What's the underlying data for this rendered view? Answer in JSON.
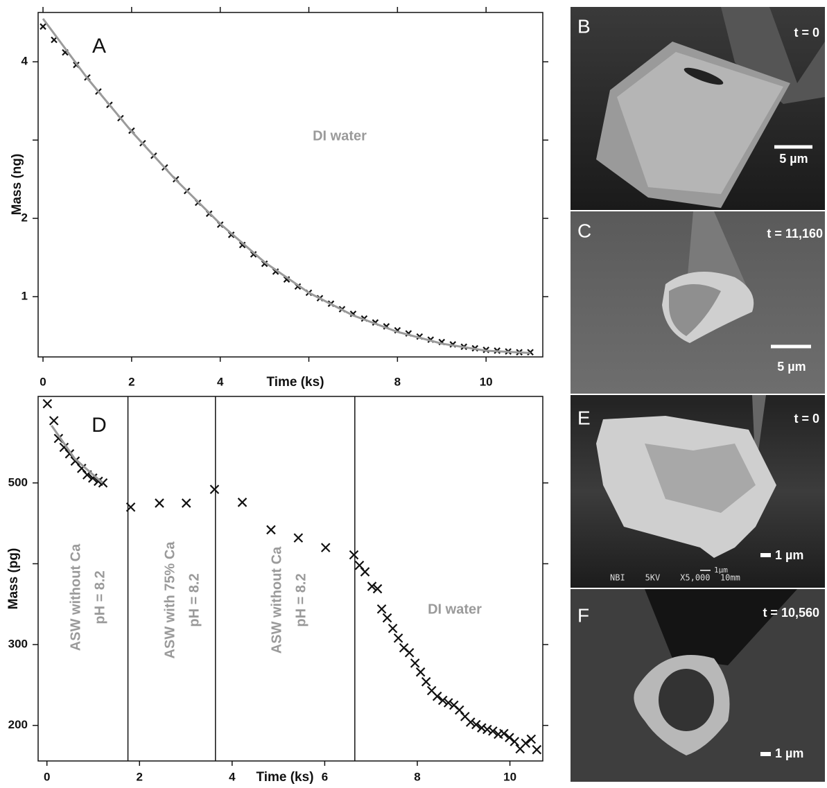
{
  "chart_data": [
    {
      "type": "scatter",
      "panel_label": "A",
      "xlabel": "Time (ks)",
      "ylabel": "Mass  (ng)",
      "annotations": [
        "DI water"
      ],
      "xlim": [
        -0.11,
        11.28
      ],
      "ylim": [
        0.23,
        4.63
      ],
      "xticks": [
        0,
        2,
        4,
        {
          "value": 6,
          "label": null
        },
        8,
        10
      ],
      "yticks": [
        1,
        2,
        {
          "value": 3,
          "label": null
        },
        4
      ],
      "series": [
        {
          "style": "cross",
          "color": "#111111",
          "x": [
            0,
            0.25,
            0.5,
            0.75,
            1,
            1.25,
            1.5,
            1.75,
            2,
            2.25,
            2.5,
            2.75,
            3,
            3.25,
            3.5,
            3.75,
            4,
            4.25,
            4.5,
            4.75,
            5,
            5.25,
            5.5,
            5.75,
            6,
            6.25,
            6.5,
            6.75,
            7,
            7.25,
            7.5,
            7.75,
            8,
            8.25,
            8.5,
            8.75,
            9,
            9.25,
            9.5,
            9.75,
            10,
            10.25,
            10.5,
            10.75,
            11
          ],
          "values": [
            4.45,
            4.28,
            4.12,
            3.96,
            3.8,
            3.62,
            3.45,
            3.28,
            3.12,
            2.96,
            2.8,
            2.65,
            2.5,
            2.35,
            2.2,
            2.06,
            1.92,
            1.79,
            1.66,
            1.54,
            1.42,
            1.32,
            1.22,
            1.13,
            1.05,
            0.98,
            0.91,
            0.84,
            0.78,
            0.72,
            0.67,
            0.62,
            0.57,
            0.53,
            0.49,
            0.45,
            0.42,
            0.39,
            0.36,
            0.34,
            0.32,
            0.31,
            0.3,
            0.29,
            0.29
          ]
        },
        {
          "style": "line",
          "color": "#9a9a9a",
          "x": [
            0,
            1,
            2,
            3,
            4,
            5,
            6,
            7,
            8,
            9,
            10,
            11
          ],
          "values": [
            4.55,
            3.79,
            3.11,
            2.49,
            1.93,
            1.44,
            1.05,
            0.76,
            0.55,
            0.4,
            0.31,
            0.28
          ]
        }
      ]
    },
    {
      "type": "scatter",
      "panel_label": "D",
      "xlabel": "Time (ks)",
      "ylabel": "Mass  (pg)",
      "annotations": [
        "DI water"
      ],
      "xlim": [
        -0.19,
        10.71
      ],
      "ylim": [
        156,
        607
      ],
      "xticks": [
        0,
        2,
        4,
        6,
        8,
        10
      ],
      "yticks": [
        200,
        300,
        {
          "value": 400,
          "label": null
        },
        500
      ],
      "vlines": [
        1.75,
        3.64,
        6.65
      ],
      "regions": [
        [
          "ASW without Ca",
          "pH = 8.2"
        ],
        [
          "ASW with 75% Ca",
          "pH = 8.2"
        ],
        [
          "ASW without Ca",
          "pH = 8.2"
        ]
      ],
      "series": [
        {
          "style": "cross",
          "color": "#111111",
          "x": [
            0.01,
            0.15,
            0.25,
            0.37,
            0.49,
            0.61,
            0.75,
            0.87,
            0.99,
            1.11,
            1.21,
            1.81,
            2.43,
            3.01,
            3.62,
            4.22,
            4.84,
            5.43,
            6.02,
            6.63,
            6.75,
            6.87,
            7.02,
            7.14,
            7.23,
            7.35,
            7.47,
            7.59,
            7.71,
            7.83,
            7.95,
            8.07,
            8.19,
            8.31,
            8.43,
            8.55,
            8.67,
            8.79,
            8.91,
            9.03,
            9.15,
            9.27,
            9.39,
            9.51,
            9.63,
            9.75,
            9.87,
            9.99,
            10.1,
            10.22,
            10.34,
            10.46,
            10.58
          ],
          "values": [
            598,
            577,
            555,
            544,
            536,
            527,
            518,
            510,
            506,
            502,
            500,
            470,
            475,
            475,
            492,
            476,
            442,
            432,
            420,
            411,
            398,
            390,
            372,
            369,
            344,
            333,
            320,
            308,
            296,
            290,
            277,
            266,
            254,
            243,
            236,
            231,
            228,
            225,
            219,
            211,
            204,
            201,
            197,
            195,
            193,
            189,
            190,
            185,
            180,
            171,
            178,
            183,
            170
          ]
        },
        {
          "style": "line",
          "color": "#9a9a9a",
          "x": [
            0.1,
            0.6,
            1.2
          ],
          "values": [
            571,
            530,
            500
          ]
        }
      ]
    }
  ],
  "images": [
    {
      "label": "B",
      "time": "t = 0",
      "scale": "5 µm"
    },
    {
      "label": "C",
      "time": "t = 11,160",
      "scale": "5 µm"
    },
    {
      "label": "E",
      "time": "t = 0",
      "scale": "1 µm",
      "caption": "NBI    5KV    X5,000  10mm",
      "caption_scale": "1µm"
    },
    {
      "label": "F",
      "time": "t = 10,560",
      "scale": "1 µm"
    }
  ]
}
